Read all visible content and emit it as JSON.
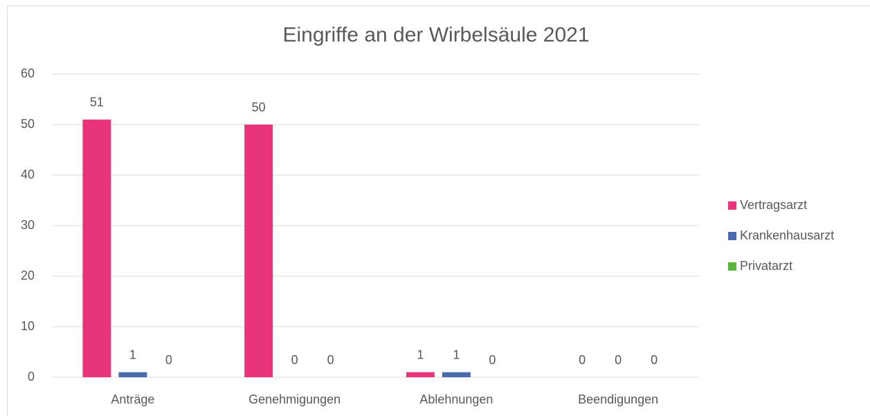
{
  "chart_data": {
    "type": "bar",
    "title": "Eingriffe an der Wirbelsäule 2021",
    "categories": [
      "Anträge",
      "Genehmigungen",
      "Ablehnungen",
      "Beendigungen"
    ],
    "series": [
      {
        "name": "Vertragsarzt",
        "color": "#e8347a",
        "values": [
          51,
          50,
          1,
          0
        ]
      },
      {
        "name": "Krankenhausarzt",
        "color": "#4a6aad",
        "values": [
          1,
          0,
          1,
          0
        ]
      },
      {
        "name": "Privatarzt",
        "color": "#5cb73f",
        "values": [
          0,
          0,
          0,
          0
        ]
      }
    ],
    "ylim": [
      0,
      60
    ],
    "yticks": [
      0,
      10,
      20,
      30,
      40,
      50,
      60
    ],
    "grid": true,
    "legend": "right"
  }
}
